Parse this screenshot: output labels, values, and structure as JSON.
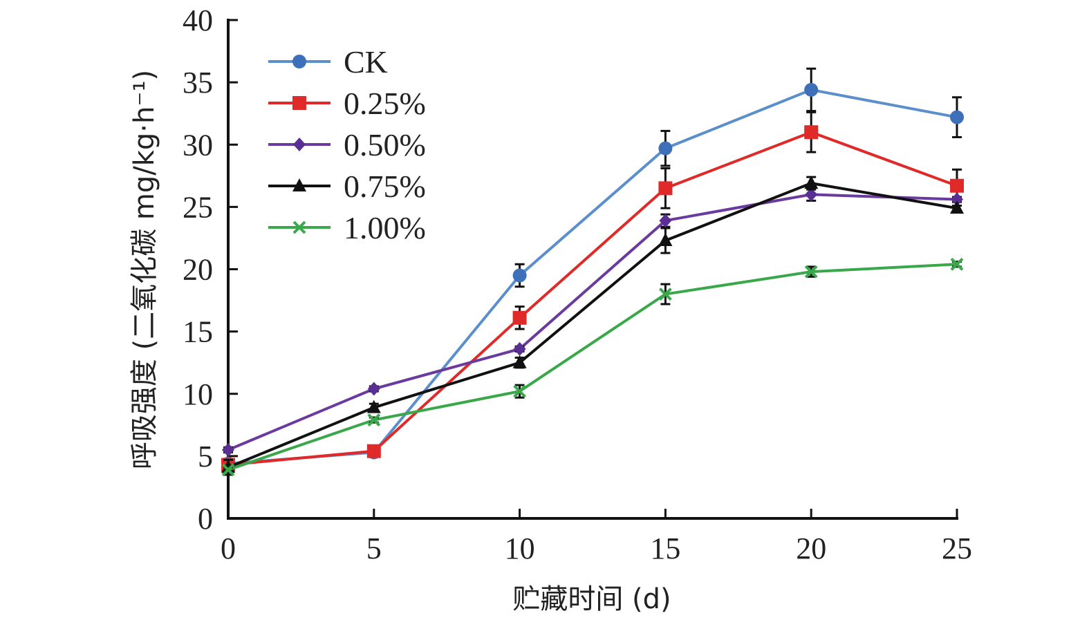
{
  "chart_data": {
    "type": "line",
    "title": "",
    "xlabel": "贮藏时间 (d)",
    "ylabel": "呼吸强度 (二氧化碳 mg/kg·h⁻¹)",
    "x": [
      0,
      5,
      10,
      15,
      20,
      25
    ],
    "xlim": [
      0,
      25
    ],
    "ylim": [
      0,
      40
    ],
    "xticks": [
      "0",
      "5",
      "10",
      "15",
      "20",
      "25"
    ],
    "yticks": [
      "0",
      "5",
      "10",
      "15",
      "20",
      "25",
      "30",
      "35",
      "40"
    ],
    "grid": false,
    "legend_position": "top-left",
    "series": [
      {
        "name": "CK",
        "color": "#5b8fcc",
        "marker_color": "#3d70b8",
        "marker": "circle",
        "values": [
          4.4,
          5.3,
          19.5,
          29.7,
          34.4,
          32.2
        ],
        "errors": [
          0.2,
          0.2,
          0.9,
          1.4,
          1.7,
          1.6
        ]
      },
      {
        "name": "0.25%",
        "color": "#e02a2a",
        "marker_color": "#e02a2a",
        "marker": "square",
        "values": [
          4.3,
          5.4,
          16.1,
          26.5,
          31.0,
          26.7
        ],
        "errors": [
          0.2,
          0.2,
          0.9,
          1.6,
          1.6,
          1.3
        ]
      },
      {
        "name": "0.50%",
        "color": "#6a3a9e",
        "marker_color": "#5a2f94",
        "marker": "diamond",
        "values": [
          5.5,
          10.4,
          13.6,
          23.9,
          26.0,
          25.6
        ],
        "errors": [
          0.2,
          0.2,
          0.2,
          0.5,
          0.5,
          0.2
        ]
      },
      {
        "name": "0.75%",
        "color": "#111111",
        "marker_color": "#111111",
        "marker": "triangle",
        "values": [
          4.1,
          8.9,
          12.5,
          22.3,
          26.9,
          24.9
        ],
        "errors": [
          0.6,
          0.3,
          0.4,
          1.0,
          0.5,
          0.2
        ]
      },
      {
        "name": "1.00%",
        "color": "#3aa84a",
        "marker_color": "#3aa84a",
        "marker": "x",
        "values": [
          3.9,
          7.9,
          10.2,
          18.0,
          19.8,
          20.4
        ],
        "errors": [
          0.2,
          0.2,
          0.5,
          0.8,
          0.4,
          0.2
        ]
      }
    ]
  }
}
